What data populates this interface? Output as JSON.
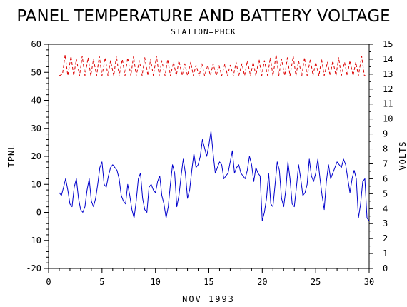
{
  "chart_data": {
    "type": "line",
    "title": "PANEL TEMPERATURE AND BATTERY VOLTAGE",
    "subtitle": "STATION=PHCK",
    "xlabel": "NOV 1993",
    "ylabel": "TPNL",
    "y2label": "VOLTS",
    "xlim": [
      0,
      30
    ],
    "ylim": [
      -20,
      60
    ],
    "y2lim": [
      0,
      15
    ],
    "x_ticks": [
      0,
      5,
      10,
      15,
      20,
      25,
      30
    ],
    "y_ticks": [
      -20,
      -10,
      0,
      10,
      20,
      30,
      40,
      50,
      60
    ],
    "y2_ticks": [
      0,
      1,
      2,
      3,
      4,
      5,
      6,
      7,
      8,
      9,
      10,
      11,
      12,
      13,
      14,
      15
    ],
    "grid": false,
    "colors": {
      "temperature": "#0000cc",
      "voltage": "#dd0000",
      "axes": "#000000"
    },
    "series": [
      {
        "axis": "left",
        "style": "solid",
        "x": [
          1.0,
          1.2,
          1.4,
          1.6,
          1.8,
          2.0,
          2.2,
          2.4,
          2.6,
          2.8,
          3.0,
          3.2,
          3.4,
          3.6,
          3.8,
          4.0,
          4.2,
          4.4,
          4.6,
          4.8,
          5.0,
          5.2,
          5.4,
          5.6,
          5.8,
          6.0,
          6.2,
          6.4,
          6.6,
          6.8,
          7.0,
          7.2,
          7.4,
          7.6,
          7.8,
          8.0,
          8.2,
          8.4,
          8.6,
          8.8,
          9.0,
          9.2,
          9.4,
          9.6,
          9.8,
          10.0,
          10.2,
          10.4,
          10.6,
          10.8,
          11.0,
          11.2,
          11.4,
          11.6,
          11.8,
          12.0,
          12.2,
          12.4,
          12.6,
          12.8,
          13.0,
          13.2,
          13.4,
          13.6,
          13.8,
          14.0,
          14.2,
          14.4,
          14.6,
          14.8,
          15.0,
          15.2,
          15.4,
          15.6,
          15.8,
          16.0,
          16.2,
          16.4,
          16.6,
          16.8,
          17.0,
          17.2,
          17.4,
          17.6,
          17.8,
          18.0,
          18.2,
          18.4,
          18.6,
          18.8,
          19.0,
          19.2,
          19.4,
          19.6,
          19.8,
          20.0,
          20.2,
          20.4,
          20.6,
          20.8,
          21.0,
          21.2,
          21.4,
          21.6,
          21.8,
          22.0,
          22.2,
          22.4,
          22.6,
          22.8,
          23.0,
          23.2,
          23.4,
          23.6,
          23.8,
          24.0,
          24.2,
          24.4,
          24.6,
          24.8,
          25.0,
          25.2,
          25.4,
          25.6,
          25.8,
          26.0,
          26.2,
          26.4,
          26.6,
          26.8,
          27.0,
          27.2,
          27.4,
          27.6,
          27.8,
          28.0,
          28.2,
          28.4,
          28.6,
          28.8,
          29.0,
          29.2,
          29.4,
          29.6,
          29.8,
          30.0
        ],
        "values": [
          7,
          6,
          9,
          12,
          8,
          3,
          2,
          9,
          12,
          5,
          1,
          0,
          2,
          8,
          12,
          4,
          2,
          5,
          10,
          16,
          18,
          10,
          9,
          13,
          16,
          17,
          16,
          15,
          12,
          6,
          4,
          3,
          10,
          6,
          1,
          -2,
          4,
          12,
          14,
          5,
          1,
          0,
          9,
          10,
          8,
          7,
          11,
          13,
          6,
          3,
          -2,
          2,
          10,
          17,
          14,
          2,
          6,
          13,
          19,
          14,
          5,
          8,
          15,
          21,
          16,
          17,
          20,
          26,
          23,
          20,
          24,
          29,
          21,
          14,
          16,
          18,
          17,
          12,
          13,
          14,
          18,
          22,
          14,
          16,
          17,
          14,
          13,
          12,
          15,
          20,
          17,
          11,
          16,
          14,
          13,
          -3,
          0,
          5,
          14,
          3,
          2,
          10,
          18,
          15,
          5,
          2,
          8,
          18,
          12,
          3,
          2,
          9,
          17,
          12,
          6,
          7,
          10,
          19,
          13,
          11,
          14,
          19,
          12,
          6,
          1,
          11,
          17,
          12,
          14,
          16,
          18,
          17,
          16,
          19,
          17,
          12,
          7,
          12,
          15,
          12,
          -2,
          3,
          11,
          12,
          -2,
          -3
        ]
      },
      {
        "axis": "right",
        "style": "dashed",
        "x": [
          1.0,
          1.3,
          1.55,
          1.8,
          2.1,
          2.35,
          2.6,
          2.9,
          3.15,
          3.4,
          3.7,
          3.95,
          4.2,
          4.5,
          4.75,
          5.0,
          5.3,
          5.55,
          5.8,
          6.1,
          6.35,
          6.6,
          6.9,
          7.15,
          7.4,
          7.7,
          7.95,
          8.2,
          8.5,
          8.75,
          9.0,
          9.3,
          9.55,
          9.8,
          10.1,
          10.35,
          10.6,
          10.9,
          11.15,
          11.4,
          11.7,
          11.95,
          12.2,
          12.5,
          12.75,
          13.0,
          13.3,
          13.55,
          13.8,
          14.1,
          14.35,
          14.6,
          14.9,
          15.15,
          15.4,
          15.7,
          15.95,
          16.2,
          16.5,
          16.75,
          17.0,
          17.3,
          17.55,
          17.8,
          18.1,
          18.35,
          18.6,
          18.9,
          19.15,
          19.4,
          19.7,
          19.95,
          20.2,
          20.5,
          20.75,
          21.0,
          21.3,
          21.55,
          21.8,
          22.1,
          22.35,
          22.6,
          22.9,
          23.15,
          23.4,
          23.7,
          23.95,
          24.2,
          24.5,
          24.75,
          25.0,
          25.3,
          25.55,
          25.8,
          26.1,
          26.35,
          26.6,
          26.9,
          27.15,
          27.4,
          27.7,
          27.95,
          28.2,
          28.5,
          28.75,
          29.0,
          29.3,
          29.55,
          29.8
        ],
        "values": [
          12.9,
          13.0,
          14.3,
          12.9,
          14.2,
          12.9,
          14.0,
          12.9,
          14.2,
          12.9,
          14.1,
          12.9,
          14.0,
          12.9,
          14.2,
          12.9,
          14.1,
          12.9,
          13.9,
          12.9,
          14.2,
          12.9,
          14.0,
          12.9,
          14.1,
          12.9,
          14.2,
          12.9,
          13.9,
          12.9,
          14.1,
          12.9,
          14.0,
          12.9,
          14.2,
          12.9,
          13.9,
          12.9,
          14.0,
          12.9,
          13.8,
          12.9,
          13.9,
          12.9,
          13.7,
          12.9,
          13.8,
          12.9,
          13.6,
          12.9,
          13.7,
          12.9,
          13.6,
          12.9,
          13.7,
          12.9,
          13.6,
          12.9,
          13.7,
          12.9,
          13.6,
          12.9,
          13.8,
          12.9,
          13.7,
          12.9,
          13.9,
          12.9,
          13.8,
          12.9,
          14.0,
          12.9,
          13.9,
          12.9,
          14.1,
          12.9,
          14.3,
          12.9,
          14.0,
          12.9,
          14.1,
          12.9,
          14.2,
          12.9,
          13.9,
          12.9,
          14.1,
          12.9,
          14.0,
          12.9,
          13.8,
          12.9,
          14.0,
          12.9,
          13.8,
          12.9,
          13.9,
          12.9,
          14.1,
          12.9,
          13.8,
          12.9,
          13.9,
          12.9,
          13.8,
          12.9,
          14.2,
          12.9,
          12.9
        ]
      }
    ]
  }
}
